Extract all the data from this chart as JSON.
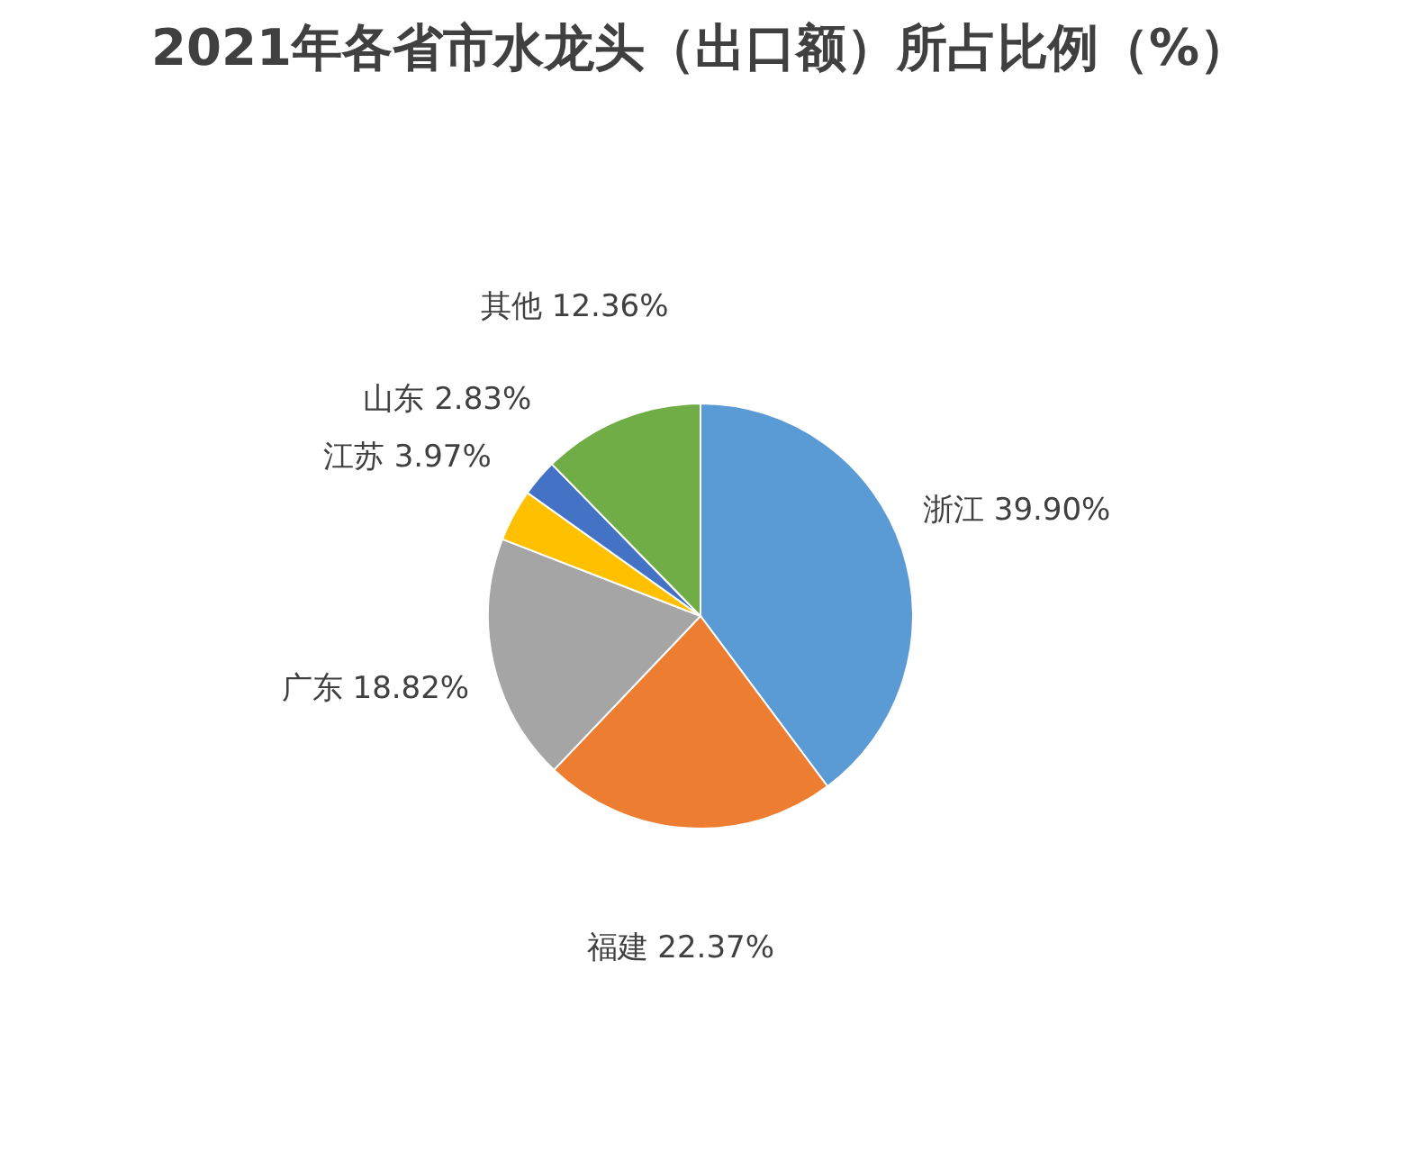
{
  "chart_data": {
    "type": "pie",
    "title": "2021年各省市水龙头（出口额）所占比例（%）",
    "categories": [
      "浙江",
      "福建",
      "广东",
      "江苏",
      "山东",
      "其他"
    ],
    "values": [
      39.9,
      22.37,
      18.82,
      3.97,
      2.83,
      12.36
    ],
    "value_labels": [
      "39.90%",
      "22.37%",
      "18.82%",
      "3.97%",
      "2.83%",
      "12.36%"
    ],
    "colors": [
      "#5b9bd5",
      "#ed7d31",
      "#a5a5a5",
      "#ffc000",
      "#4472c4",
      "#70ad47"
    ],
    "legend": false
  }
}
